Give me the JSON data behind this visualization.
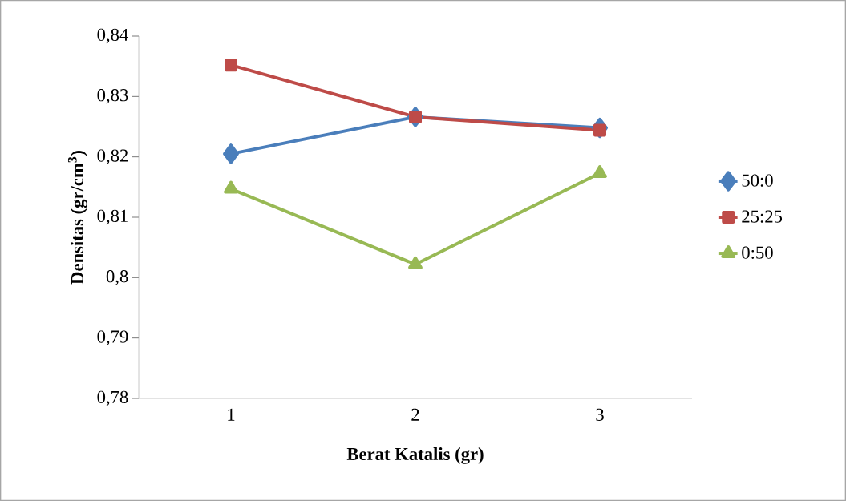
{
  "chart_data": {
    "type": "line",
    "xlabel": "Berat Katalis (gr)",
    "ylabel": "Densitas (gr/cm$^{3}$)",
    "categories": [
      "1",
      "2",
      "3"
    ],
    "series": [
      {
        "name": "50:0",
        "color": "#4a7ebb",
        "marker": "diamond",
        "values": [
          0.8205,
          0.8266,
          0.8248
        ]
      },
      {
        "name": "25:25",
        "color": "#be4b48",
        "marker": "square",
        "values": [
          0.8352,
          0.8266,
          0.8244
        ]
      },
      {
        "name": "0:50",
        "color": "#98b954",
        "marker": "triangle",
        "values": [
          0.8147,
          0.8022,
          0.8173
        ]
      }
    ],
    "ylim": [
      0.78,
      0.84
    ],
    "yticks": [
      {
        "value": 0.78,
        "label": "0,78"
      },
      {
        "value": 0.79,
        "label": "0,79"
      },
      {
        "value": 0.8,
        "label": "0,8"
      },
      {
        "value": 0.81,
        "label": "0,81"
      },
      {
        "value": 0.82,
        "label": "0,82"
      },
      {
        "value": 0.83,
        "label": "0,83"
      },
      {
        "value": 0.84,
        "label": "0,84"
      }
    ],
    "grid": false,
    "legend": "right",
    "line_style": "solid"
  }
}
